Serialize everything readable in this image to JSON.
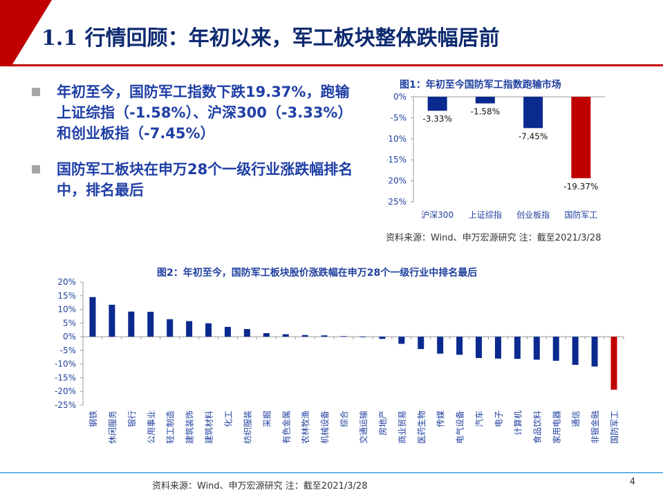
{
  "slide": {
    "title": "1.1 行情回顾：年初以来，军工板块整体跌幅居前",
    "page_number": "4",
    "footer_source": "资料来源：Wind、申万宏源研究   注：截至2021/3/28"
  },
  "bullets": [
    "年初至今，国防军工指数下跌19.37%，跑输上证综指（-1.58%）、沪深300（-3.33%）和创业板指（-7.45%）",
    "国防军工板块在申万28个一级行业涨跌幅排名中，排名最后"
  ],
  "figure1": {
    "title": "图1：年初至今国防军工指数跑输市场",
    "source": "资料来源：Wind、申万宏源研究   注：截至2021/3/28"
  },
  "figure2": {
    "title": "图2：年初至今，国防军工板块股价涨跌幅在申万28个一级行业中排名最后"
  },
  "colors": {
    "blue": "#0b2a8f",
    "red": "#c00000",
    "title_blue": "#0d2a6f",
    "accent_red": "#c00000"
  },
  "chart_data": [
    {
      "type": "bar",
      "categories": [
        "沪深300",
        "上证综指",
        "创业板指",
        "国防军工"
      ],
      "values": [
        -3.33,
        -1.58,
        -7.45,
        -19.37
      ],
      "data_labels": [
        "-3.33%",
        "-1.58%",
        "-7.45%",
        "-19.37%"
      ],
      "ylim": [
        -25,
        0
      ],
      "yticks": [
        "0%",
        "-5%",
        "-10%",
        "-15%",
        "-20%",
        "-25%"
      ],
      "highlight": "国防军工",
      "title": "图1：年初至今国防军工指数跑输市场",
      "grid": false
    },
    {
      "type": "bar",
      "categories": [
        "钢铁",
        "休闲服务",
        "银行",
        "公用事业",
        "轻工制造",
        "建筑装饰",
        "建筑材料",
        "化工",
        "纺织服装",
        "采掘",
        "有色金属",
        "农林牧渔",
        "机械设备",
        "综合",
        "交通运输",
        "房地产",
        "商业贸易",
        "医药生物",
        "传媒",
        "电气设备",
        "汽车",
        "电子",
        "计算机",
        "食品饮料",
        "家用电器",
        "通信",
        "非银金融",
        "国防军工"
      ],
      "values": [
        14.5,
        11.7,
        9.2,
        9.1,
        6.4,
        5.7,
        4.9,
        3.6,
        2.8,
        1.3,
        0.9,
        0.6,
        0.5,
        0.2,
        -0.1,
        -0.8,
        -2.6,
        -4.5,
        -6.2,
        -6.6,
        -7.8,
        -8.0,
        -8.1,
        -8.4,
        -8.8,
        -10.3,
        -10.9,
        -19.37
      ],
      "ylim": [
        -25,
        20
      ],
      "yticks": [
        "20%",
        "15%",
        "10%",
        "5%",
        "0%",
        "-5%",
        "-10%",
        "-15%",
        "-20%",
        "-25%"
      ],
      "highlight": "国防军工",
      "title": "图2：年初至今，国防军工板块股价涨跌幅在申万28个一级行业中排名最后",
      "grid": false
    }
  ]
}
